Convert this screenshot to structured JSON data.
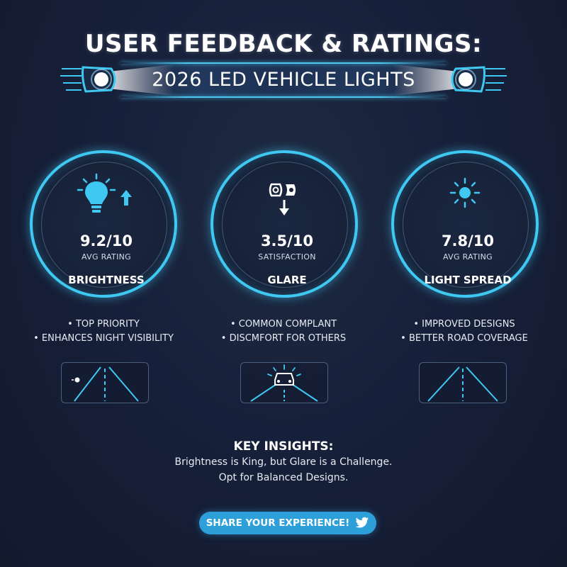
{
  "header": {
    "title": "USER FEEDBACK & RATINGS:",
    "subtitle": "2026 LED VEHICLE LIGHTS"
  },
  "categories": [
    {
      "name": "BRIGHTNESS",
      "score": "9.2/10",
      "score_label": "AVG RATING",
      "icon": "lightbulb-up-icon",
      "bullets": [
        "• TOP PRIORITY",
        "• ENHANCES NIGHT VISIBILITY"
      ],
      "road_icon": "road-single-light-icon"
    },
    {
      "name": "GLARE",
      "score": "3.5/10",
      "score_label": "SATISFACTION",
      "icon": "headlight-down-icon",
      "bullets": [
        "• COMMON COMPLANT",
        "• DISCMFORT FOR OTHERS"
      ],
      "road_icon": "road-oncoming-car-icon"
    },
    {
      "name": "LIGHT SPREAD",
      "score": "7.8/10",
      "score_label": "AVG RATING",
      "icon": "sun-icon",
      "bullets": [
        "• IMPROVED DESIGNS",
        "• BETTER ROAD COVERAGE"
      ],
      "road_icon": "road-wide-icon"
    }
  ],
  "insights": {
    "title": "KEY INSIGHTS:",
    "line1": "Brightness is King, but Glare is a Challenge.",
    "line2": "Opt for Balanced Designs."
  },
  "share": {
    "label": "SHARE YOUR EXPERIENCE!",
    "icon": "twitter-bird-icon"
  },
  "colors": {
    "accent": "#3fc9f2",
    "background": "#17203a",
    "button": "#2d9fd9"
  }
}
